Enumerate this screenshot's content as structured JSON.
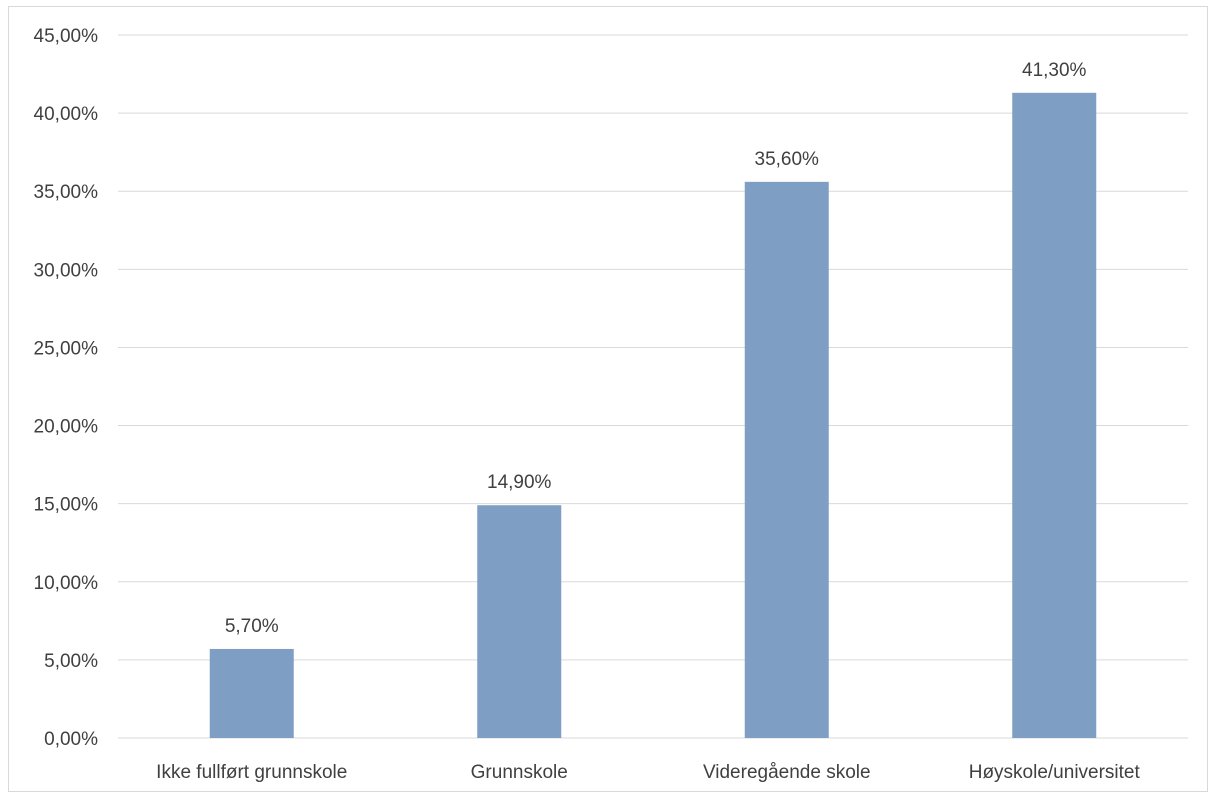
{
  "chart_data": {
    "type": "bar",
    "title": "",
    "xlabel": "",
    "ylabel": "",
    "categories": [
      "Ikke fullført grunnskole",
      "Grunnskole",
      "Videregående skole",
      "Høyskole/universitet"
    ],
    "values": [
      5.7,
      14.9,
      35.6,
      41.3
    ],
    "value_labels": [
      "5,70%",
      "14,90%",
      "35,60%",
      "41,30%"
    ],
    "ylim": [
      0,
      45
    ],
    "yticks": [
      0,
      5,
      10,
      15,
      20,
      25,
      30,
      35,
      40,
      45
    ],
    "ytick_labels": [
      "0,00%",
      "5,00%",
      "10,00%",
      "15,00%",
      "20,00%",
      "25,00%",
      "30,00%",
      "35,00%",
      "40,00%",
      "45,00%"
    ],
    "grid": true,
    "legend": "none",
    "bar_color": "#7f9ec4"
  }
}
